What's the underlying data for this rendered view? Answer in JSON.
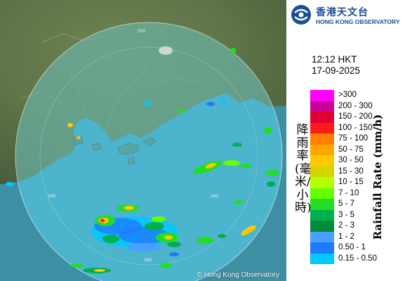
{
  "header": {
    "logo_cn": "香港天文台",
    "logo_en": "HONG KONG OBSERVATORY"
  },
  "timestamp": {
    "time": "12:12 HKT",
    "date": "17-09-2025"
  },
  "map": {
    "ring_labels": [
      "200",
      "200",
      "200",
      "200"
    ],
    "credit": "© Hong Kong Observatory"
  },
  "legend": {
    "title_cn": "降雨率(毫米/小時)",
    "title_en": "Rainfall Rate (mm/h)",
    "items": [
      {
        "label": ">300",
        "color": "#ff00ff"
      },
      {
        "label": "200 - 300",
        "color": "#cc0099"
      },
      {
        "label": "150 - 200",
        "color": "#dd0033"
      },
      {
        "label": "100 - 150",
        "color": "#ff1a1a"
      },
      {
        "label": "75 - 100",
        "color": "#ff8000"
      },
      {
        "label": "50 - 75",
        "color": "#ffa500"
      },
      {
        "label": "30 - 50",
        "color": "#ffc800"
      },
      {
        "label": "15 - 30",
        "color": "#d4d400"
      },
      {
        "label": "10 - 15",
        "color": "#b4ff00"
      },
      {
        "label": "7 - 10",
        "color": "#66ff00"
      },
      {
        "label": "5 - 7",
        "color": "#22dd22"
      },
      {
        "label": "3 - 5",
        "color": "#00b050"
      },
      {
        "label": "2 - 3",
        "color": "#008a3a"
      },
      {
        "label": "1 - 2",
        "color": "#4aa0ff"
      },
      {
        "label": "0.50 - 1",
        "color": "#1e7aff"
      },
      {
        "label": "0.15 - 0.50",
        "color": "#00c8ff"
      }
    ]
  }
}
